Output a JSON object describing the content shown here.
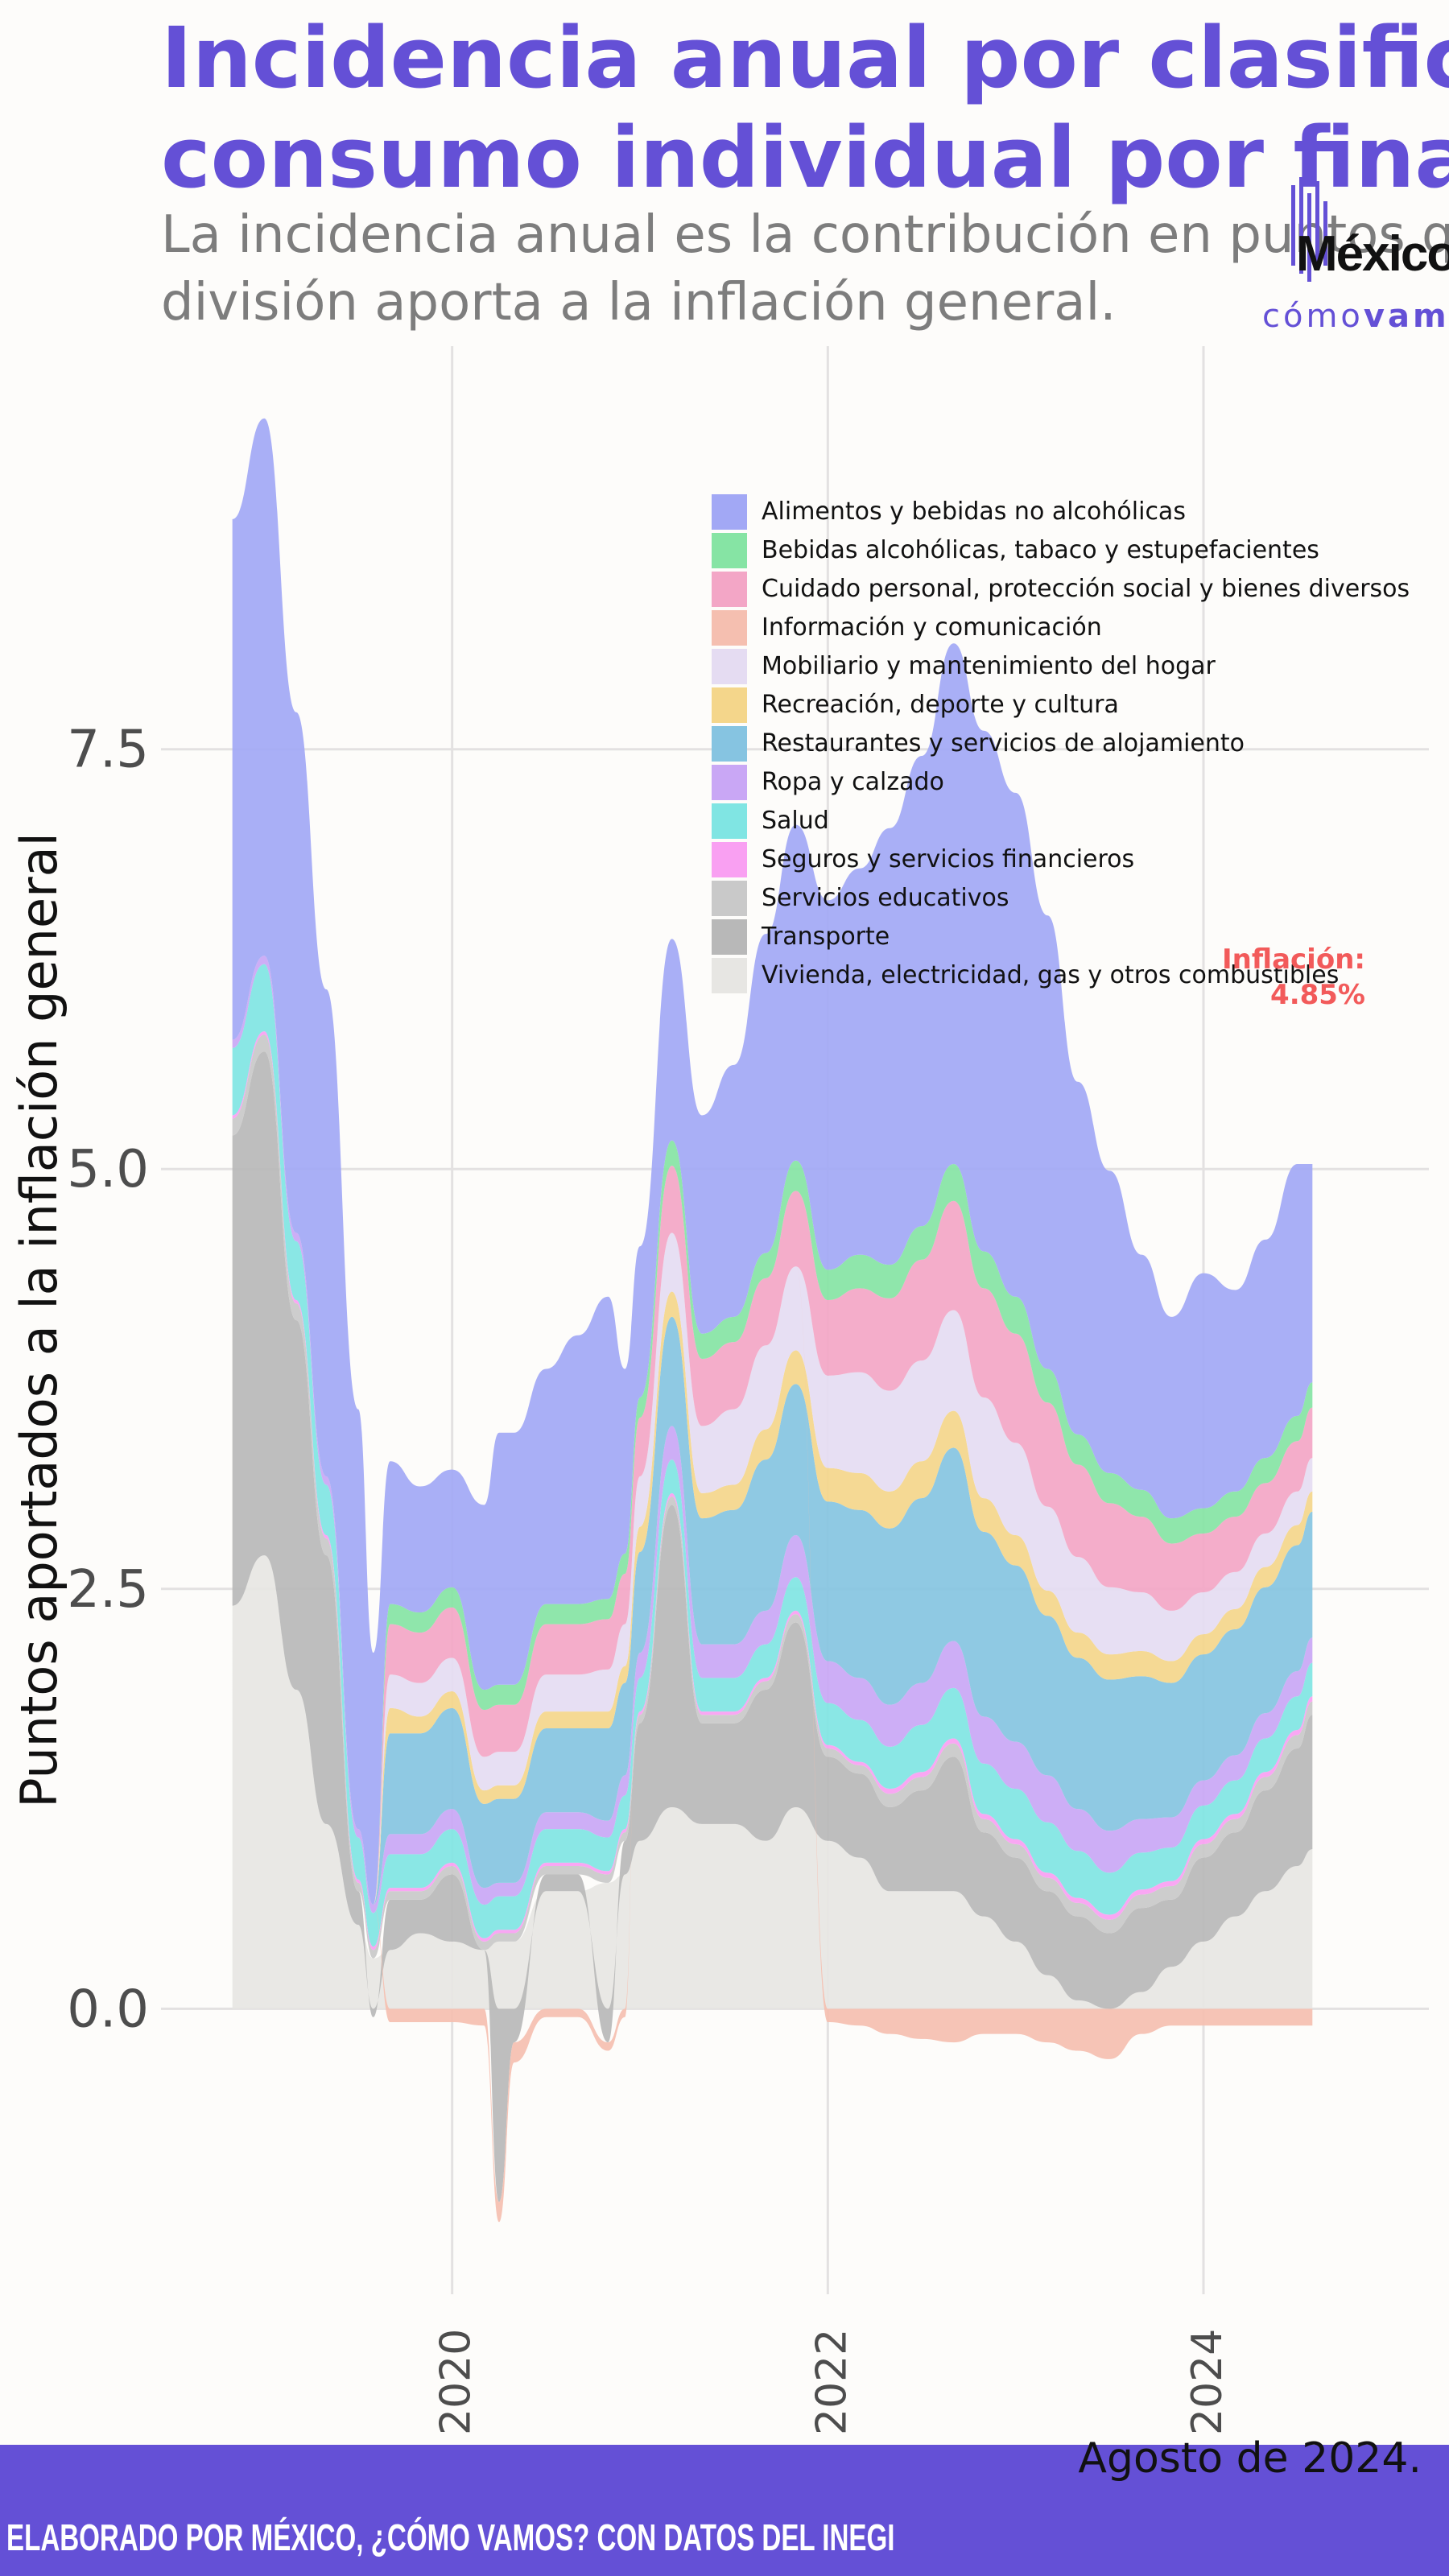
{
  "title_lines": [
    "Incidencia anual por clasificación del",
    "consumo individual por finalidad"
  ],
  "subtitle_lines": [
    "La incidencia anual es la contribución en puntos que cada",
    "división aporta a la inflación general."
  ],
  "logo": {
    "word": "México",
    "sub_light": "cómo",
    "sub_bold": "vamos"
  },
  "footer": "ELABORADO POR MÉXICO, ¿CÓMO VAMOS? CON DATOS DEL INEGI",
  "date_note": "Agosto de 2024.",
  "inflation_label": {
    "line1": "Inflación:",
    "line2": "4.85%",
    "color": "#f25a5a"
  },
  "colors": {
    "brand": "#6450d6",
    "grid": "#e3e1e1"
  },
  "chart_data": {
    "type": "area",
    "stacked": true,
    "title": "Incidencia anual por clasificación del consumo individual por finalidad",
    "ylabel": "Puntos aportados a la inflación general",
    "xlabel": "",
    "xlim": [
      2018.45,
      2025.2
    ],
    "ylim": [
      -1.7,
      9.9
    ],
    "x_ticks": [
      2020,
      2022,
      2024
    ],
    "y_ticks": [
      0.0,
      2.5,
      5.0,
      7.5
    ],
    "y_tick_labels": [
      "0.0",
      "2.5",
      "5.0",
      "7.5"
    ],
    "grid": true,
    "legend_position": "top-right",
    "x": [
      2018.83,
      2019.0,
      2019.17,
      2019.33,
      2019.5,
      2019.58,
      2019.67,
      2019.83,
      2020.0,
      2020.17,
      2020.25,
      2020.33,
      2020.5,
      2020.67,
      2020.83,
      2020.92,
      2021.0,
      2021.17,
      2021.33,
      2021.5,
      2021.67,
      2021.83,
      2022.0,
      2022.17,
      2022.33,
      2022.5,
      2022.67,
      2022.83,
      2023.0,
      2023.17,
      2023.33,
      2023.5,
      2023.67,
      2023.83,
      2024.0,
      2024.17,
      2024.33,
      2024.5,
      2024.58
    ],
    "series": [
      {
        "name": "Vivienda, electricidad, gas y otros combustibles",
        "color": "#e7e6e3",
        "values": [
          2.4,
          2.7,
          1.9,
          1.1,
          0.5,
          0.3,
          0.35,
          0.45,
          0.4,
          0.35,
          0.4,
          0.4,
          0.7,
          0.7,
          0.75,
          0.8,
          1.0,
          1.2,
          1.1,
          1.1,
          1.0,
          1.2,
          1.0,
          0.9,
          0.7,
          0.7,
          0.7,
          0.55,
          0.4,
          0.2,
          0.05,
          0.0,
          0.1,
          0.25,
          0.4,
          0.55,
          0.7,
          0.85,
          0.95
        ]
      },
      {
        "name": "Transporte",
        "color": "#b8b8b8",
        "values": [
          2.8,
          3.0,
          2.2,
          1.6,
          0.2,
          -0.05,
          0.3,
          0.2,
          0.4,
          0.0,
          -1.15,
          -0.2,
          0.1,
          0.1,
          -0.2,
          0.2,
          0.7,
          1.8,
          0.6,
          0.6,
          0.9,
          1.1,
          0.5,
          0.5,
          0.5,
          0.6,
          0.8,
          0.5,
          0.5,
          0.5,
          0.5,
          0.45,
          0.5,
          0.4,
          0.5,
          0.5,
          0.6,
          0.7,
          0.8
        ]
      },
      {
        "name": "Servicios educativos",
        "color": "#c9c9c9",
        "values": [
          0.1,
          0.1,
          0.1,
          0.1,
          0.05,
          0.05,
          0.05,
          0.05,
          0.05,
          0.05,
          0.05,
          0.05,
          0.05,
          0.05,
          0.05,
          0.05,
          0.05,
          0.05,
          0.05,
          0.05,
          0.05,
          0.05,
          0.05,
          0.05,
          0.08,
          0.08,
          0.08,
          0.08,
          0.08,
          0.08,
          0.08,
          0.08,
          0.08,
          0.08,
          0.08,
          0.08,
          0.08,
          0.08,
          0.08
        ]
      },
      {
        "name": "Seguros y servicios financieros",
        "color": "#f9a0f2",
        "values": [
          0.02,
          0.02,
          0.02,
          0.02,
          0.02,
          0.02,
          0.02,
          0.02,
          0.02,
          0.02,
          0.02,
          0.02,
          0.02,
          0.02,
          0.02,
          0.02,
          0.02,
          0.02,
          0.02,
          0.02,
          0.02,
          0.02,
          0.02,
          0.02,
          0.03,
          0.03,
          0.03,
          0.03,
          0.03,
          0.03,
          0.03,
          0.03,
          0.03,
          0.03,
          0.03,
          0.03,
          0.03,
          0.03,
          0.03
        ]
      },
      {
        "name": "Salud",
        "color": "#80e5e3",
        "values": [
          0.4,
          0.4,
          0.35,
          0.3,
          0.25,
          0.2,
          0.2,
          0.2,
          0.2,
          0.2,
          0.2,
          0.2,
          0.2,
          0.2,
          0.2,
          0.2,
          0.2,
          0.2,
          0.2,
          0.2,
          0.2,
          0.2,
          0.25,
          0.25,
          0.25,
          0.28,
          0.3,
          0.3,
          0.3,
          0.3,
          0.28,
          0.25,
          0.22,
          0.2,
          0.2,
          0.2,
          0.2,
          0.2,
          0.2
        ]
      },
      {
        "name": "Ropa y calzado",
        "color": "#c9a7f5",
        "values": [
          0.05,
          0.05,
          0.05,
          0.05,
          0.05,
          0.05,
          0.12,
          0.12,
          0.12,
          0.1,
          0.08,
          0.08,
          0.1,
          0.1,
          0.1,
          0.12,
          0.15,
          0.2,
          0.2,
          0.2,
          0.2,
          0.25,
          0.25,
          0.25,
          0.25,
          0.25,
          0.28,
          0.28,
          0.28,
          0.28,
          0.25,
          0.25,
          0.2,
          0.18,
          0.15,
          0.15,
          0.15,
          0.15,
          0.15
        ]
      },
      {
        "name": "Restaurantes y servicios de alojamiento",
        "color": "#86c4e1",
        "values": [
          0.0,
          0.0,
          0.0,
          0.0,
          0.0,
          0.0,
          0.6,
          0.6,
          0.6,
          0.5,
          0.5,
          0.5,
          0.5,
          0.5,
          0.55,
          0.55,
          0.6,
          0.65,
          0.75,
          0.8,
          0.9,
          0.9,
          0.95,
          1.0,
          1.05,
          1.1,
          1.15,
          1.1,
          1.05,
          0.95,
          0.9,
          0.9,
          0.85,
          0.8,
          0.75,
          0.75,
          0.75,
          0.75,
          0.75
        ]
      },
      {
        "name": "Recreación, deporte y cultura",
        "color": "#f4d68b",
        "values": [
          0.0,
          0.0,
          0.0,
          0.0,
          0.0,
          0.0,
          0.15,
          0.1,
          0.1,
          0.08,
          0.08,
          0.08,
          0.1,
          0.1,
          0.1,
          0.1,
          0.15,
          0.15,
          0.15,
          0.15,
          0.18,
          0.2,
          0.2,
          0.22,
          0.22,
          0.22,
          0.22,
          0.2,
          0.18,
          0.15,
          0.15,
          0.15,
          0.15,
          0.13,
          0.12,
          0.12,
          0.12,
          0.12,
          0.12
        ]
      },
      {
        "name": "Mobiliario y mantenimiento del hogar",
        "color": "#e5dcf2",
        "values": [
          0.0,
          0.0,
          0.0,
          0.0,
          0.0,
          0.0,
          0.2,
          0.2,
          0.2,
          0.2,
          0.2,
          0.2,
          0.22,
          0.22,
          0.25,
          0.25,
          0.3,
          0.35,
          0.4,
          0.45,
          0.5,
          0.5,
          0.55,
          0.6,
          0.6,
          0.6,
          0.6,
          0.6,
          0.55,
          0.5,
          0.45,
          0.4,
          0.35,
          0.3,
          0.25,
          0.22,
          0.2,
          0.2,
          0.2
        ]
      },
      {
        "name": "Información y comunicación",
        "color": "#f5bfb0",
        "values": [
          0.0,
          0.0,
          0.0,
          0.0,
          0.0,
          0.0,
          -0.08,
          -0.08,
          -0.08,
          -0.1,
          -0.12,
          -0.12,
          -0.05,
          -0.05,
          -0.05,
          -0.05,
          0.0,
          0.0,
          0.0,
          0.0,
          0.0,
          0.0,
          -0.08,
          -0.1,
          -0.15,
          -0.18,
          -0.2,
          -0.15,
          -0.15,
          -0.2,
          -0.25,
          -0.3,
          -0.15,
          -0.1,
          -0.1,
          -0.1,
          -0.1,
          -0.1,
          -0.1
        ]
      },
      {
        "name": "Cuidado personal, protección social y bienes diversos",
        "color": "#f3a6c6",
        "values": [
          0.0,
          0.0,
          0.0,
          0.0,
          0.0,
          0.0,
          0.3,
          0.3,
          0.3,
          0.28,
          0.28,
          0.28,
          0.3,
          0.3,
          0.3,
          0.3,
          0.35,
          0.4,
          0.4,
          0.4,
          0.4,
          0.45,
          0.45,
          0.5,
          0.55,
          0.6,
          0.65,
          0.65,
          0.65,
          0.62,
          0.55,
          0.5,
          0.45,
          0.4,
          0.35,
          0.33,
          0.3,
          0.3,
          0.3
        ]
      },
      {
        "name": "Bebidas alcohólicas, tabaco y estupefacientes",
        "color": "#86e4a4",
        "values": [
          0.0,
          0.0,
          0.0,
          0.0,
          0.0,
          0.0,
          0.12,
          0.12,
          0.12,
          0.12,
          0.12,
          0.12,
          0.12,
          0.12,
          0.12,
          0.12,
          0.12,
          0.15,
          0.15,
          0.15,
          0.15,
          0.18,
          0.18,
          0.2,
          0.2,
          0.2,
          0.22,
          0.22,
          0.22,
          0.2,
          0.18,
          0.18,
          0.16,
          0.15,
          0.15,
          0.15,
          0.15,
          0.15,
          0.15
        ]
      },
      {
        "name": "Alimentos y bebidas no alcohólicas",
        "color": "#a2a8f5",
        "values": [
          3.1,
          3.2,
          3.1,
          2.9,
          2.5,
          1.5,
          0.85,
          0.75,
          0.7,
          1.1,
          1.5,
          1.5,
          1.4,
          1.6,
          1.8,
          1.1,
          0.9,
          1.2,
          1.3,
          1.5,
          1.9,
          2.0,
          2.2,
          2.3,
          2.6,
          2.8,
          3.1,
          3.1,
          3.0,
          2.7,
          2.1,
          1.8,
          1.4,
          1.2,
          1.4,
          1.2,
          1.3,
          1.5,
          1.3
        ]
      }
    ]
  }
}
